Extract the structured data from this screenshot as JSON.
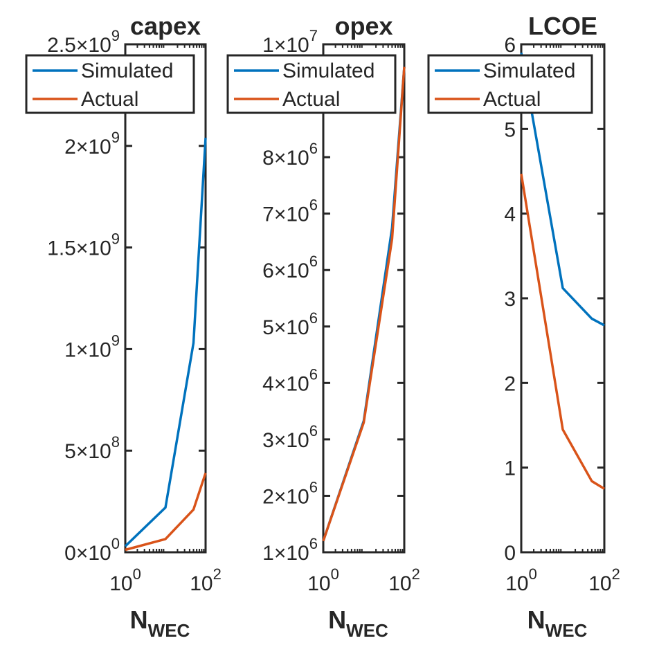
{
  "chart_data": [
    {
      "type": "line",
      "title": "capex",
      "xlabel": {
        "base": "N",
        "sub": "WEC"
      },
      "ylabel": "",
      "xscale": "log",
      "xlim": [
        1,
        100
      ],
      "ylim": [
        0,
        2500000000
      ],
      "xticks": [
        {
          "value": 1,
          "base": "10",
          "exp": "0"
        },
        {
          "value": 100,
          "base": "10",
          "exp": "2"
        }
      ],
      "yticks": [
        {
          "value": 0,
          "mant": "0",
          "exp": "0"
        },
        {
          "value": 500000000,
          "mant": "5",
          "exp": "8"
        },
        {
          "value": 1000000000,
          "mant": "1",
          "exp": "9"
        },
        {
          "value": 1500000000,
          "mant": "1.5",
          "exp": "9"
        },
        {
          "value": 2000000000,
          "mant": "2",
          "exp": "9"
        },
        {
          "value": 2500000000,
          "mant": "2.5",
          "exp": "9"
        }
      ],
      "grid": false,
      "legend_position": "top",
      "series": [
        {
          "name": "Simulated",
          "color": "#0072BD",
          "x": [
            1,
            10,
            50,
            100
          ],
          "y": [
            30000000,
            220000000,
            1030000000,
            2040000000
          ]
        },
        {
          "name": "Actual",
          "color": "#D95319",
          "x": [
            1,
            10,
            50,
            100
          ],
          "y": [
            12000000,
            65000000,
            210000000,
            390000000
          ]
        }
      ]
    },
    {
      "type": "line",
      "title": "opex",
      "xlabel": {
        "base": "N",
        "sub": "WEC"
      },
      "ylabel": "",
      "xscale": "log",
      "xlim": [
        1,
        100
      ],
      "ylim": [
        1000000,
        10000000
      ],
      "xticks": [
        {
          "value": 1,
          "base": "10",
          "exp": "0"
        },
        {
          "value": 100,
          "base": "10",
          "exp": "2"
        }
      ],
      "yticks": [
        {
          "value": 1000000,
          "mant": "1",
          "exp": "6"
        },
        {
          "value": 2000000,
          "mant": "2",
          "exp": "6"
        },
        {
          "value": 3000000,
          "mant": "3",
          "exp": "6"
        },
        {
          "value": 4000000,
          "mant": "4",
          "exp": "6"
        },
        {
          "value": 5000000,
          "mant": "5",
          "exp": "6"
        },
        {
          "value": 6000000,
          "mant": "6",
          "exp": "6"
        },
        {
          "value": 7000000,
          "mant": "7",
          "exp": "6"
        },
        {
          "value": 8000000,
          "mant": "8",
          "exp": "6"
        },
        {
          "value": 10000000,
          "mant": "1",
          "exp": "7"
        }
      ],
      "grid": false,
      "legend_position": "top",
      "series": [
        {
          "name": "Simulated",
          "color": "#0072BD",
          "x": [
            1,
            10,
            50,
            100
          ],
          "y": [
            1200000,
            3330000,
            6750000,
            9600000
          ]
        },
        {
          "name": "Actual",
          "color": "#D95319",
          "x": [
            1,
            10,
            50,
            100
          ],
          "y": [
            1200000,
            3300000,
            6550000,
            9600000
          ]
        }
      ]
    },
    {
      "type": "line",
      "title": "LCOE",
      "xlabel": {
        "base": "N",
        "sub": "WEC"
      },
      "ylabel": "",
      "xscale": "log",
      "xlim": [
        1,
        100
      ],
      "ylim": [
        0,
        6
      ],
      "xticks": [
        {
          "value": 1,
          "base": "10",
          "exp": "0"
        },
        {
          "value": 100,
          "base": "10",
          "exp": "2"
        }
      ],
      "yticks": [
        {
          "value": 0,
          "text": "0"
        },
        {
          "value": 1,
          "text": "1"
        },
        {
          "value": 2,
          "text": "2"
        },
        {
          "value": 3,
          "text": "3"
        },
        {
          "value": 4,
          "text": "4"
        },
        {
          "value": 5,
          "text": "5"
        },
        {
          "value": 6,
          "text": "6"
        }
      ],
      "grid": false,
      "legend_position": "top",
      "series": [
        {
          "name": "Simulated",
          "color": "#0072BD",
          "x": [
            1,
            10,
            50,
            100
          ],
          "y": [
            5.9,
            3.12,
            2.76,
            2.68
          ]
        },
        {
          "name": "Actual",
          "color": "#D95319",
          "x": [
            1,
            10,
            50,
            100
          ],
          "y": [
            4.47,
            1.45,
            0.84,
            0.75
          ]
        }
      ]
    }
  ]
}
